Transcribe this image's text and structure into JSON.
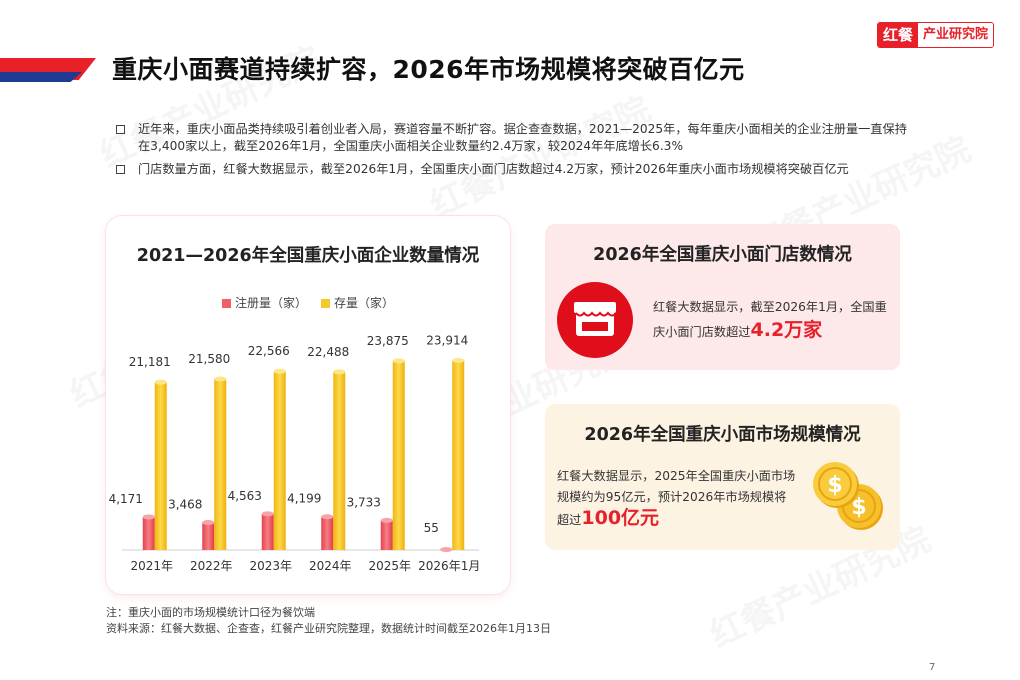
{
  "header": {
    "title": "重庆小面赛道持续扩容，2026年市场规模将突破百亿元",
    "logo_part1": "红餐",
    "logo_part2": "产业研究院"
  },
  "bullets": [
    "近年来，重庆小面品类持续吸引着创业者入局，赛道容量不断扩容。据企查查数据，2021—2025年，每年重庆小面相关的企业注册量一直保持在3,400家以上，截至2026年1月，全国重庆小面相关企业数量约2.4万家，较2024年年底增长6.3%",
    "门店数量方面，红餐大数据显示，截至2026年1月，全国重庆小面门店数超过4.2万家，预计2026年重庆小面市场规模将突破百亿元"
  ],
  "chart_data": {
    "type": "bar",
    "title": "2021—2026年全国重庆小面企业数量情况",
    "categories": [
      "2021年",
      "2022年",
      "2023年",
      "2024年",
      "2025年",
      "2026年1月"
    ],
    "series": [
      {
        "name": "注册量（家）",
        "values": [
          4171,
          3468,
          4563,
          4199,
          3733,
          55
        ],
        "labels": [
          "4,171",
          "3,468",
          "4,563",
          "4,199",
          "3,733",
          "55"
        ],
        "color": "#f0606a"
      },
      {
        "name": "存量（家）",
        "values": [
          21181,
          21580,
          22566,
          22488,
          23875,
          23914
        ],
        "labels": [
          "21,181",
          "21,580",
          "22,566",
          "22,488",
          "23,875",
          "23,914"
        ],
        "color": "#f6c92a"
      }
    ],
    "ylim": [
      0,
      26000
    ],
    "grid": false,
    "legend": "top"
  },
  "box_stores": {
    "title": "2026年全国重庆小面门店数情况",
    "desc": "红餐大数据显示，截至2026年1月，全国重庆小面门店数超过",
    "highlight": "4.2万家"
  },
  "box_market": {
    "title": "2026年全国重庆小面市场规模情况",
    "desc": "红餐大数据显示，2025年全国重庆小面市场规模约为95亿元，预计2026年市场规模将超过",
    "highlight": "100亿元"
  },
  "notes": {
    "note": "注：重庆小面的市场规模统计口径为餐饮端",
    "source": "资料来源：红餐大数据、企查查，红餐产业研究院整理，数据统计时间截至2026年1月13日"
  },
  "page_number": "7",
  "watermark": "红餐产业研究院",
  "colors": {
    "brand_red": "#e8202a",
    "navy": "#1f3a93"
  }
}
